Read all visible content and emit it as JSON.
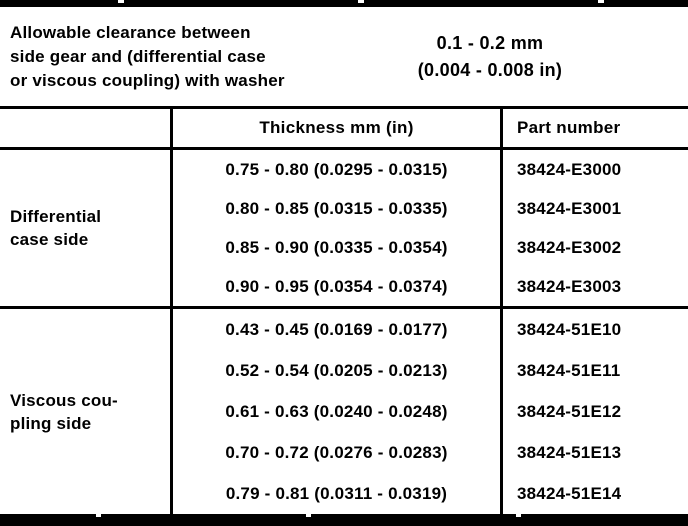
{
  "colors": {
    "ink": "#000000",
    "paper": "#ffffff"
  },
  "clearance": {
    "label": "Allowable clearance between side gear and (differential case or viscous coupling) with washer",
    "label_lines": [
      "Allowable clearance between",
      "side gear and (differential case",
      "or viscous coupling) with washer"
    ],
    "value_mm": "0.1 - 0.2 mm",
    "value_in": "(0.004 - 0.008 in)"
  },
  "table": {
    "columns": [
      "",
      "Thickness mm (in)",
      "Part number"
    ],
    "sections": [
      {
        "label": "Differential case side",
        "label_lines": [
          "Differential",
          "case side"
        ],
        "rows": [
          {
            "thickness": "0.75 - 0.80 (0.0295 - 0.0315)",
            "part": "38424-E3000"
          },
          {
            "thickness": "0.80 - 0.85 (0.0315 - 0.0335)",
            "part": "38424-E3001"
          },
          {
            "thickness": "0.85 - 0.90 (0.0335 - 0.0354)",
            "part": "38424-E3002"
          },
          {
            "thickness": "0.90 - 0.95 (0.0354 - 0.0374)",
            "part": "38424-E3003"
          }
        ]
      },
      {
        "label": "Viscous coupling side",
        "label_lines": [
          "Viscous cou-",
          "pling side"
        ],
        "rows": [
          {
            "thickness": "0.43 - 0.45 (0.0169 - 0.0177)",
            "part": "38424-51E10"
          },
          {
            "thickness": "0.52 - 0.54 (0.0205 - 0.0213)",
            "part": "38424-51E11"
          },
          {
            "thickness": "0.61 - 0.63 (0.0240 - 0.0248)",
            "part": "38424-51E12"
          },
          {
            "thickness": "0.70 - 0.72 (0.0276 - 0.0283)",
            "part": "38424-51E13"
          },
          {
            "thickness": "0.79 - 0.81 (0.0311 - 0.0319)",
            "part": "38424-51E14"
          }
        ]
      }
    ]
  }
}
